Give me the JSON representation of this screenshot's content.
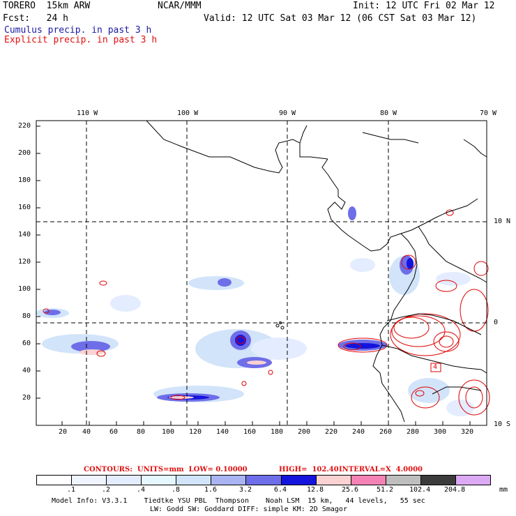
{
  "header": {
    "model": "TORERO  15km ARW",
    "org": "NCAR/MMM",
    "init": "Init: 12 UTC Fri 02 Mar 12",
    "fcst": "Fcst:   24 h",
    "valid": "Valid: 12 UTC Sat 03 Mar 12 (06 CST Sat 03 Mar 12)",
    "legend_cumulus": "Cumulus precip. in past 3 h",
    "legend_explicit": "Explicit precip. in past 3 h"
  },
  "map": {
    "lon_labels": [
      "110 W",
      "100 W",
      "90 W",
      "80 W",
      "70 W"
    ],
    "lat_labels": [
      "10 N",
      "0",
      "10 S"
    ],
    "y_ticks": [
      "220",
      "200",
      "180",
      "160",
      "140",
      "120",
      "100",
      "80",
      "60",
      "40",
      "20"
    ],
    "x_ticks": [
      "20",
      "40",
      "60",
      "80",
      "100",
      "120",
      "140",
      "160",
      "180",
      "200",
      "220",
      "240",
      "260",
      "280",
      "300",
      "320"
    ],
    "inset_label": "4"
  },
  "contours_info": {
    "contours": "CONTOURS:  UNITS=mm  LOW= 0.10000",
    "high": "HIGH=  102.40",
    "interval": "INTERVAL=X  4.0000"
  },
  "colorbar": {
    "labels": [
      ".1",
      ".2",
      ".4",
      ".8",
      "1.6",
      "3.2",
      "6.4",
      "12.8",
      "25.6",
      "51.2",
      "102.4",
      "204.8"
    ],
    "units": "mm",
    "colors": [
      "#ffffff",
      "#f0f4ff",
      "#e4ecff",
      "#e6f8ff",
      "#d2e4fa",
      "#aab4f2",
      "#6e6ee8",
      "#1414dc",
      "#fad2d2",
      "#f582b4",
      "#bebebe",
      "#3c3c3c",
      "#dcaaf5"
    ]
  },
  "footer": {
    "line1": "Model Info: V3.3.1    Tiedtke YSU PBL  Thompson    Noah LSM  15 km,   44 levels,   55 sec",
    "line2": "LW: Godd SW: Goddard DIFF: simple KM: 2D Smagor"
  },
  "colors": {
    "cumulus": "#1a1aa0",
    "explicit": "#e01010",
    "contour": "#e00000"
  }
}
